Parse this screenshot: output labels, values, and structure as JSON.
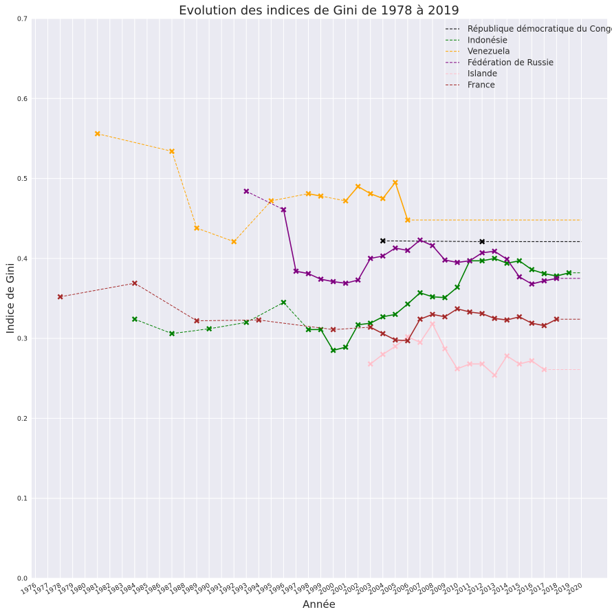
{
  "chart_data": {
    "type": "line",
    "title": "Evolution des indices de Gini de 1978 à 2019",
    "xlabel": "Année",
    "ylabel": "Indice de Gini",
    "xlim": [
      1976,
      2020
    ],
    "ylim": [
      0,
      0.7
    ],
    "xticks": [
      "1976",
      "1977",
      "1978",
      "1979",
      "1980",
      "1981",
      "1982",
      "1983",
      "1984",
      "1985",
      "1986",
      "1987",
      "1988",
      "1989",
      "1990",
      "1991",
      "1992",
      "1993",
      "1994",
      "1995",
      "1996",
      "1997",
      "1998",
      "1999",
      "2000",
      "2001",
      "2002",
      "2003",
      "2004",
      "2005",
      "2006",
      "2007",
      "2008",
      "2009",
      "2010",
      "2011",
      "2012",
      "2013",
      "2014",
      "2015",
      "2016",
      "2017",
      "2018",
      "2019",
      "2020"
    ],
    "yticks": [
      "0.0",
      "0.1",
      "0.2",
      "0.3",
      "0.4",
      "0.5",
      "0.6",
      "0.7"
    ],
    "grid": true,
    "legend_position": "top-right",
    "series": [
      {
        "name": "République démocratique du Congo",
        "color": "#000000",
        "points": [
          [
            2004,
            0.422
          ],
          [
            2012,
            0.421
          ]
        ],
        "extend_to": 2020
      },
      {
        "name": "Indonésie",
        "color": "#008000",
        "points": [
          [
            1984,
            0.324
          ],
          [
            1987,
            0.306
          ],
          [
            1990,
            0.312
          ],
          [
            1993,
            0.32
          ],
          [
            1996,
            0.345
          ],
          [
            1998,
            0.311
          ],
          [
            1999,
            0.311
          ],
          [
            2000,
            0.285
          ],
          [
            2001,
            0.289
          ],
          [
            2002,
            0.317
          ],
          [
            2003,
            0.319
          ],
          [
            2004,
            0.327
          ],
          [
            2005,
            0.33
          ],
          [
            2006,
            0.343
          ],
          [
            2007,
            0.357
          ],
          [
            2008,
            0.352
          ],
          [
            2009,
            0.351
          ],
          [
            2010,
            0.364
          ],
          [
            2011,
            0.397
          ],
          [
            2012,
            0.397
          ],
          [
            2013,
            0.4
          ],
          [
            2014,
            0.394
          ],
          [
            2015,
            0.397
          ],
          [
            2016,
            0.386
          ],
          [
            2017,
            0.381
          ],
          [
            2018,
            0.378
          ],
          [
            2019,
            0.382
          ]
        ],
        "extend_to": 2020
      },
      {
        "name": "Venezuela",
        "color": "#ffa500",
        "points": [
          [
            1981,
            0.556
          ],
          [
            1987,
            0.534
          ],
          [
            1989,
            0.438
          ],
          [
            1992,
            0.421
          ],
          [
            1995,
            0.472
          ],
          [
            1998,
            0.481
          ],
          [
            1999,
            0.478
          ],
          [
            2001,
            0.472
          ],
          [
            2002,
            0.49
          ],
          [
            2003,
            0.481
          ],
          [
            2004,
            0.475
          ],
          [
            2005,
            0.495
          ],
          [
            2006,
            0.448
          ]
        ],
        "extend_to": 2020
      },
      {
        "name": "Fédération de Russie",
        "color": "#800080",
        "points": [
          [
            1993,
            0.484
          ],
          [
            1996,
            0.461
          ],
          [
            1997,
            0.384
          ],
          [
            1998,
            0.381
          ],
          [
            1999,
            0.374
          ],
          [
            2000,
            0.371
          ],
          [
            2001,
            0.369
          ],
          [
            2002,
            0.373
          ],
          [
            2003,
            0.4
          ],
          [
            2004,
            0.403
          ],
          [
            2005,
            0.413
          ],
          [
            2006,
            0.41
          ],
          [
            2007,
            0.423
          ],
          [
            2008,
            0.416
          ],
          [
            2009,
            0.398
          ],
          [
            2010,
            0.395
          ],
          [
            2011,
            0.397
          ],
          [
            2012,
            0.407
          ],
          [
            2013,
            0.409
          ],
          [
            2014,
            0.399
          ],
          [
            2015,
            0.377
          ],
          [
            2016,
            0.368
          ],
          [
            2017,
            0.372
          ],
          [
            2018,
            0.375
          ]
        ],
        "extend_to": 2020
      },
      {
        "name": "Islande",
        "color": "#ffc0cb",
        "points": [
          [
            2003,
            0.268
          ],
          [
            2004,
            0.28
          ],
          [
            2005,
            0.29
          ],
          [
            2006,
            0.302
          ],
          [
            2007,
            0.295
          ],
          [
            2008,
            0.318
          ],
          [
            2009,
            0.287
          ],
          [
            2010,
            0.262
          ],
          [
            2011,
            0.268
          ],
          [
            2012,
            0.268
          ],
          [
            2013,
            0.254
          ],
          [
            2014,
            0.278
          ],
          [
            2015,
            0.268
          ],
          [
            2016,
            0.272
          ],
          [
            2017,
            0.261
          ]
        ],
        "extend_to": 2020
      },
      {
        "name": "France",
        "color": "#a52a2a",
        "points": [
          [
            1978,
            0.352
          ],
          [
            1984,
            0.369
          ],
          [
            1989,
            0.322
          ],
          [
            1994,
            0.323
          ],
          [
            2000,
            0.311
          ],
          [
            2003,
            0.314
          ],
          [
            2004,
            0.306
          ],
          [
            2005,
            0.298
          ],
          [
            2006,
            0.297
          ],
          [
            2007,
            0.324
          ],
          [
            2008,
            0.33
          ],
          [
            2009,
            0.327
          ],
          [
            2010,
            0.337
          ],
          [
            2011,
            0.333
          ],
          [
            2012,
            0.331
          ],
          [
            2013,
            0.325
          ],
          [
            2014,
            0.323
          ],
          [
            2015,
            0.327
          ],
          [
            2016,
            0.319
          ],
          [
            2017,
            0.316
          ],
          [
            2018,
            0.324
          ]
        ],
        "extend_to": 2020
      }
    ]
  }
}
